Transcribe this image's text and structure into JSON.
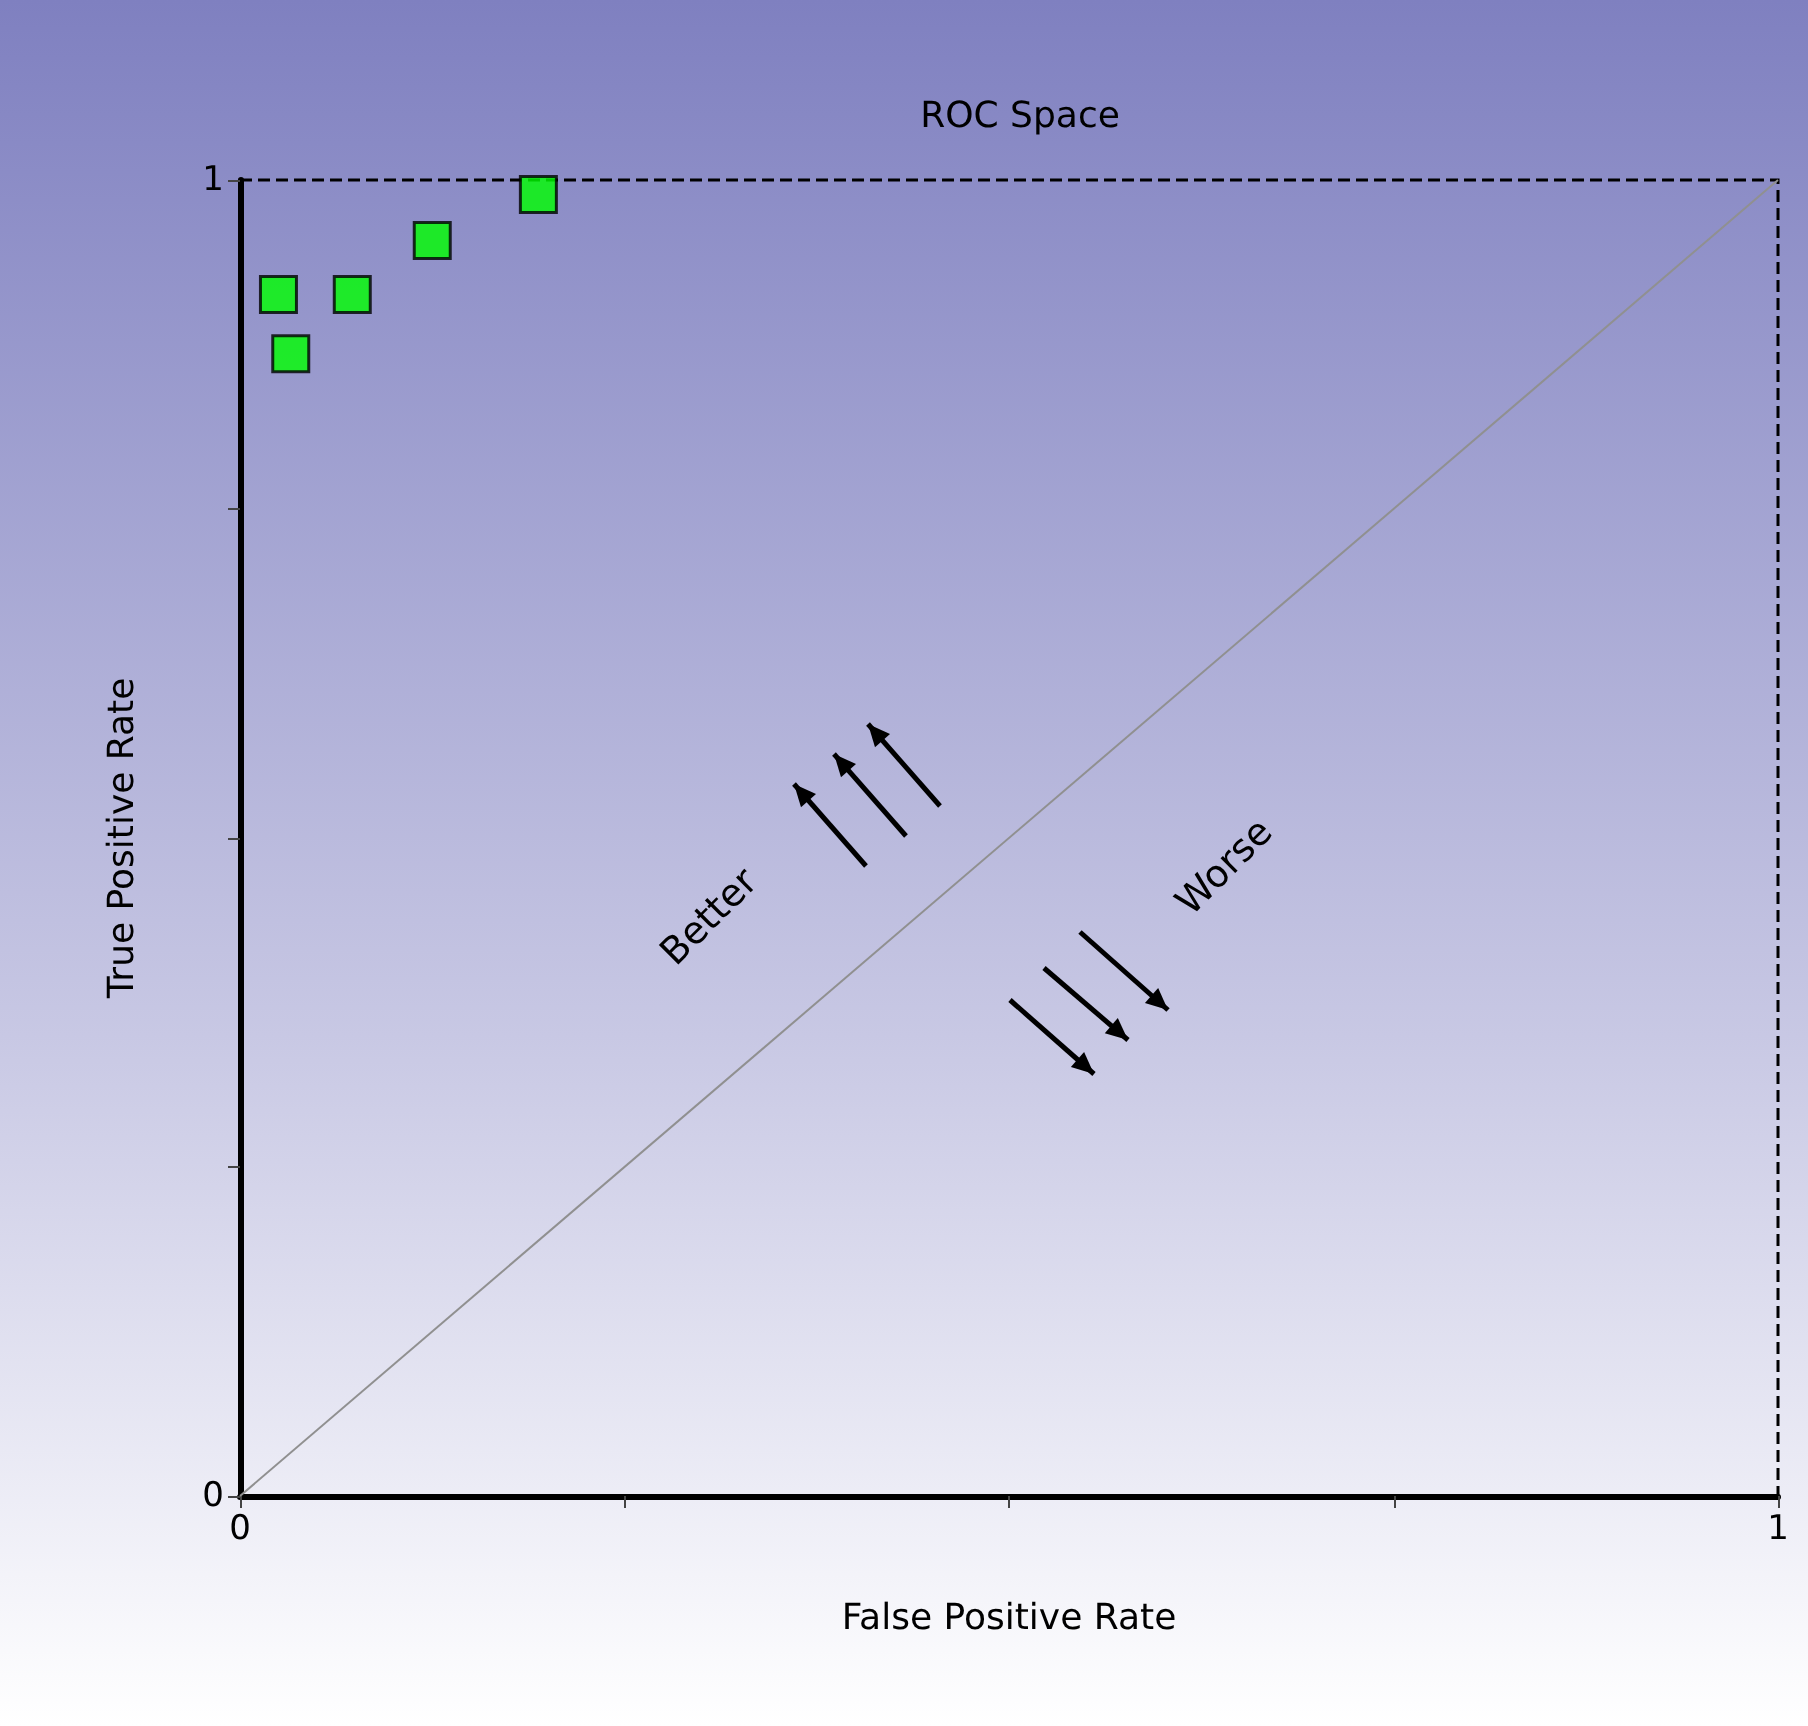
{
  "chart_data": {
    "type": "scatter",
    "title": "ROC Space",
    "xlabel": "False Positive Rate",
    "ylabel": "True Positive Rate",
    "annotations": [
      "Better",
      "Worse"
    ],
    "series": [
      {
        "color": "#00ff00",
        "marker": "square",
        "x": [
          0.025,
          0.033,
          0.073,
          0.125,
          0.194
        ],
        "values": [
          0.913,
          0.868,
          0.913,
          0.954,
          0.989
        ]
      },
      {
        "type": "line",
        "color": "#909090",
        "marker": "none",
        "x": [
          0,
          1
        ],
        "values": [
          0,
          1
        ]
      }
    ],
    "xlim": [
      0,
      1
    ],
    "ylim": [
      0,
      1
    ],
    "xticks": [
      0,
      {
        "value": 0.25,
        "label": null
      },
      {
        "value": 0.5,
        "label": null
      },
      {
        "value": 0.75,
        "label": null
      },
      1
    ],
    "yticks": [
      0,
      {
        "value": 0.25,
        "label": null
      },
      {
        "value": 0.5,
        "label": null
      },
      {
        "value": 0.75,
        "label": null
      },
      1
    ],
    "grid": false
  }
}
